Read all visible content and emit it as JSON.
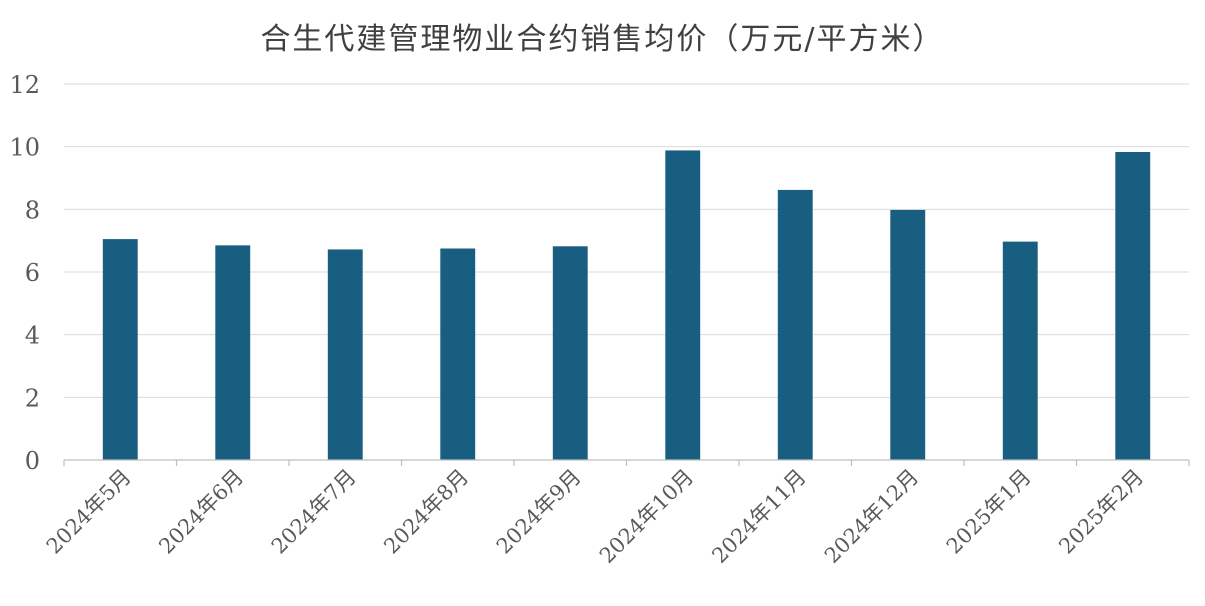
{
  "chart_data": {
    "type": "bar",
    "title": "合生代建管理物业合约销售均价（万元/平方米）",
    "categories": [
      "2024年5月",
      "2024年6月",
      "2024年7月",
      "2024年8月",
      "2024年9月",
      "2024年10月",
      "2024年11月",
      "2024年12月",
      "2025年1月",
      "2025年2月"
    ],
    "values": [
      7.05,
      6.85,
      6.72,
      6.75,
      6.82,
      9.88,
      8.62,
      7.98,
      6.97,
      9.83
    ],
    "ylim": [
      0,
      12
    ],
    "yticks": [
      0,
      2,
      4,
      6,
      8,
      10,
      12
    ],
    "grid": true,
    "bar_color": "#175e80",
    "grid_color": "#d9d9d9",
    "axis_color": "#bfbfbf"
  }
}
